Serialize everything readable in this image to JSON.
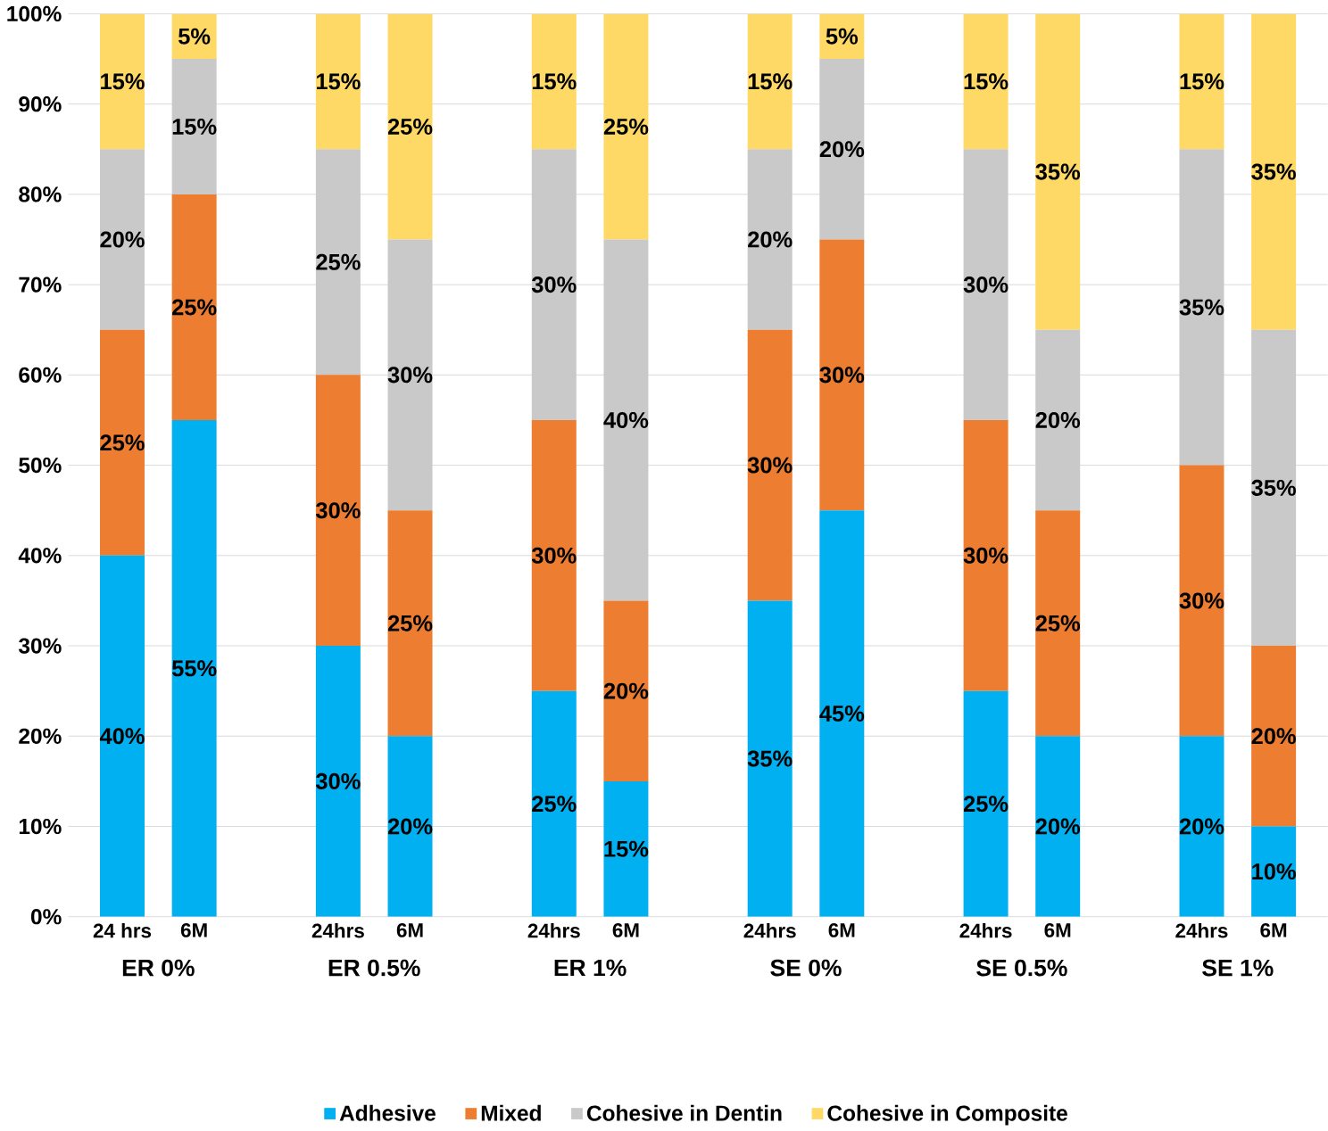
{
  "chart_data": {
    "type": "bar",
    "stacked": true,
    "categories": [
      "24 hrs",
      "6M",
      "24hrs",
      "6M",
      "24hrs",
      "6M",
      "24hrs",
      "6M",
      "24hrs",
      "6M",
      "24hrs",
      "6M"
    ],
    "annotations": [
      "ER 0%",
      "ER 0.5%",
      "ER 1%",
      "SE 0%",
      "SE 0.5%",
      "SE 1%"
    ],
    "series": [
      {
        "name": "Adhesive",
        "color": "#00b0f0",
        "values": [
          40,
          55,
          30,
          20,
          25,
          15,
          35,
          45,
          25,
          20,
          20,
          10
        ],
        "value_labels": [
          "40%",
          "55%",
          "30%",
          "20%",
          "25%",
          "15%",
          "35%",
          "45%",
          "25%",
          "20%",
          "20%",
          "10%"
        ]
      },
      {
        "name": "Mixed",
        "color": "#ed7d31",
        "values": [
          25,
          25,
          30,
          25,
          30,
          20,
          30,
          30,
          30,
          25,
          30,
          20
        ],
        "value_labels": [
          "25%",
          "25%",
          "30%",
          "25%",
          "30%",
          "20%",
          "30%",
          "30%",
          "30%",
          "25%",
          "30%",
          "20%"
        ]
      },
      {
        "name": "Cohesive in Dentin",
        "color": "#c9c9c9",
        "values": [
          20,
          15,
          25,
          30,
          30,
          40,
          20,
          20,
          30,
          20,
          35,
          35
        ],
        "value_labels": [
          "20%",
          "15%",
          "25%",
          "30%",
          "30%",
          "40%",
          "20%",
          "20%",
          "30%",
          "20%",
          "35%",
          "35%"
        ]
      },
      {
        "name": "Cohesive in Composite",
        "color": "#ffd966",
        "values": [
          15,
          5,
          15,
          25,
          15,
          25,
          15,
          5,
          15,
          35,
          15,
          35
        ],
        "value_labels": [
          "15%",
          "5%",
          "15%",
          "25%",
          "15%",
          "25%",
          "15%",
          "5%",
          "15%",
          "35%",
          "15%",
          "35%"
        ]
      }
    ],
    "ylim": [
      0,
      100
    ],
    "yticks": [
      {
        "value": 0,
        "label": "0%"
      },
      {
        "value": 10,
        "label": "10%"
      },
      {
        "value": 20,
        "label": "20%"
      },
      {
        "value": 30,
        "label": "30%"
      },
      {
        "value": 40,
        "label": "40%"
      },
      {
        "value": 50,
        "label": "50%"
      },
      {
        "value": 60,
        "label": "60%"
      },
      {
        "value": 70,
        "label": "70%"
      },
      {
        "value": 80,
        "label": "80%"
      },
      {
        "value": 90,
        "label": "90%"
      },
      {
        "value": 100,
        "label": "100%"
      }
    ],
    "grid": "y",
    "legend": "bottom"
  }
}
